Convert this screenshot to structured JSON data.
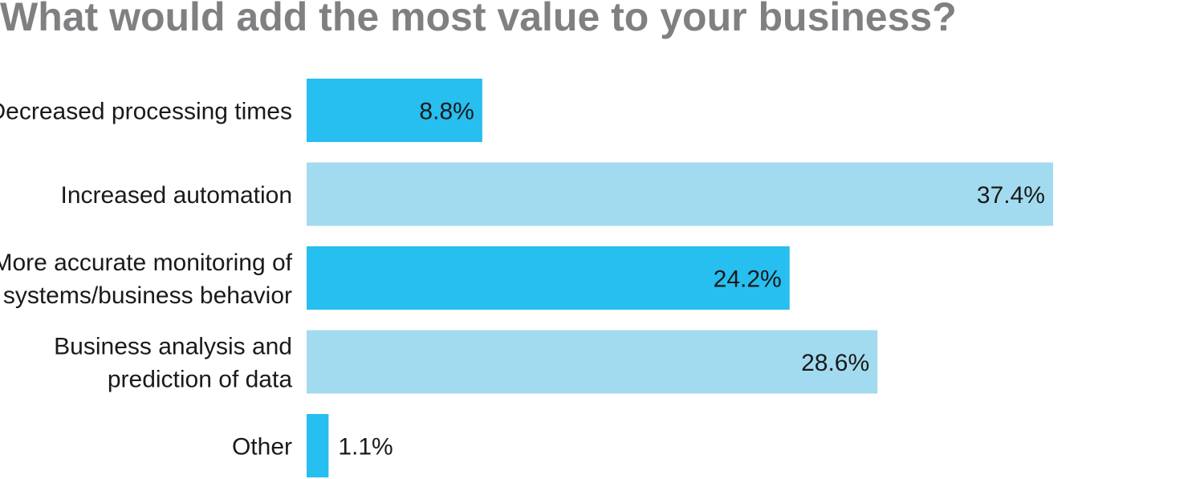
{
  "chart_data": {
    "type": "bar",
    "orientation": "horizontal",
    "title": "What would add the most value to your business?",
    "categories": [
      [
        "Decreased processing times"
      ],
      [
        "Increased automation"
      ],
      [
        "More accurate monitoring of",
        "systems/business behavior"
      ],
      [
        "Business analysis and",
        "prediction of data"
      ],
      [
        "Other"
      ]
    ],
    "values": [
      8.8,
      37.4,
      24.2,
      28.6,
      1.1
    ],
    "value_labels": [
      "8.8%",
      "37.4%",
      "24.2%",
      "28.6%",
      "1.1%"
    ],
    "xlim": [
      0,
      37.4
    ],
    "grid": false,
    "legend": "none",
    "colors": {
      "bar_dark": "#27BEF0",
      "bar_light": "#A2DBEF",
      "title": "#808083",
      "text": "#1A1A1A"
    },
    "bar_color_pattern": [
      "dark",
      "light",
      "dark",
      "light",
      "dark"
    ]
  }
}
